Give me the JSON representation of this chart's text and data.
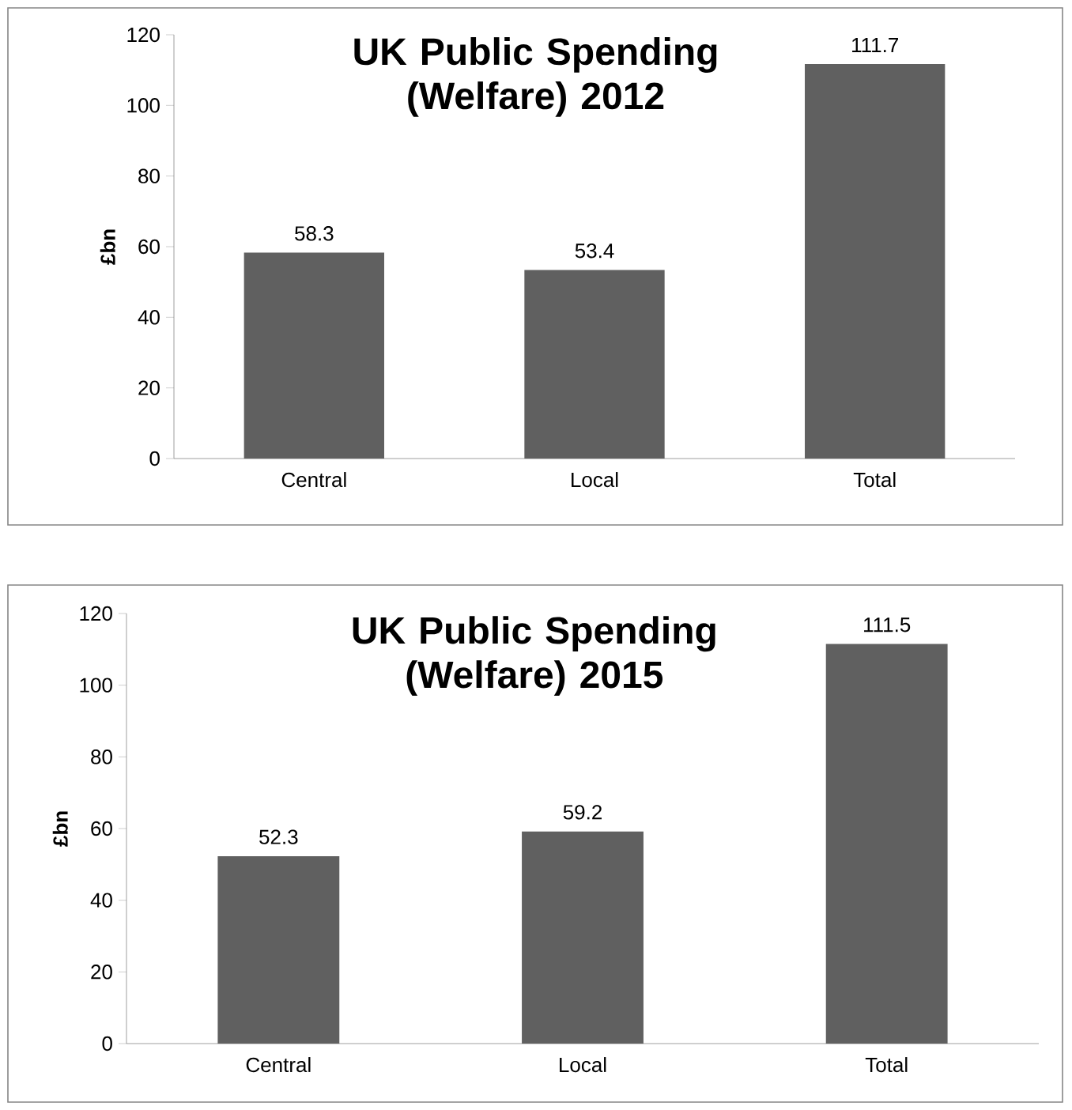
{
  "chart_data": [
    {
      "type": "bar",
      "title": "UK Public Spending (Welfare) 2012",
      "ylabel": "£bn",
      "categories": [
        "Central",
        "Local",
        "Total"
      ],
      "values": [
        58.3,
        53.4,
        111.7
      ],
      "color": "#606060",
      "ylim": [
        0,
        120
      ],
      "yticks": [
        0,
        20,
        40,
        60,
        80,
        100,
        120
      ],
      "data_labels": true
    },
    {
      "type": "bar",
      "title": "UK Public Spending (Welfare) 2015",
      "ylabel": "£bn",
      "categories": [
        "Central",
        "Local",
        "Total"
      ],
      "values": [
        52.3,
        59.2,
        111.5
      ],
      "color": "#606060",
      "ylim": [
        0,
        120
      ],
      "yticks": [
        0,
        20,
        40,
        60,
        80,
        100,
        120
      ],
      "data_labels": true
    }
  ]
}
